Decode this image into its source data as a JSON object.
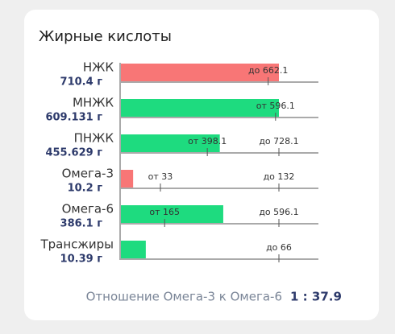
{
  "chart_data": {
    "type": "bar",
    "orientation": "horizontal",
    "title": "Жирные кислоты",
    "categories": [
      "НЖК",
      "МНЖК",
      "ПНЖК",
      "Омега-3",
      "Омега-6",
      "Трансжиры"
    ],
    "values": [
      710.4,
      609.131,
      455.629,
      10.2,
      386.1,
      10.39
    ],
    "value_labels": [
      "710.4 г",
      "609.131 г",
      "455.629 г",
      "10.2 г",
      "386.1 г",
      "10.39 г"
    ],
    "colors": [
      "#f87676",
      "#1edb7f",
      "#1edb7f",
      "#f87676",
      "#1edb7f",
      "#1edb7f"
    ],
    "limits": [
      [
        {
          "value": 662.1,
          "label": "до 662.1"
        }
      ],
      [
        {
          "value": 596.1,
          "label": "от 596.1"
        }
      ],
      [
        {
          "value": 398.1,
          "label": "от 398.1"
        },
        {
          "value": 728.1,
          "label": "до 728.1"
        }
      ],
      [
        {
          "value": 33,
          "label": "от 33"
        },
        {
          "value": 132,
          "label": "до 132"
        }
      ],
      [
        {
          "value": 165,
          "label": "от 165"
        },
        {
          "value": 596.1,
          "label": "до 596.1"
        }
      ],
      [
        {
          "value": 66,
          "label": "до 66"
        }
      ]
    ],
    "ratio_label": "Отношение Омега-3 к Омега-6",
    "ratio_value": "1 : 37.9"
  }
}
